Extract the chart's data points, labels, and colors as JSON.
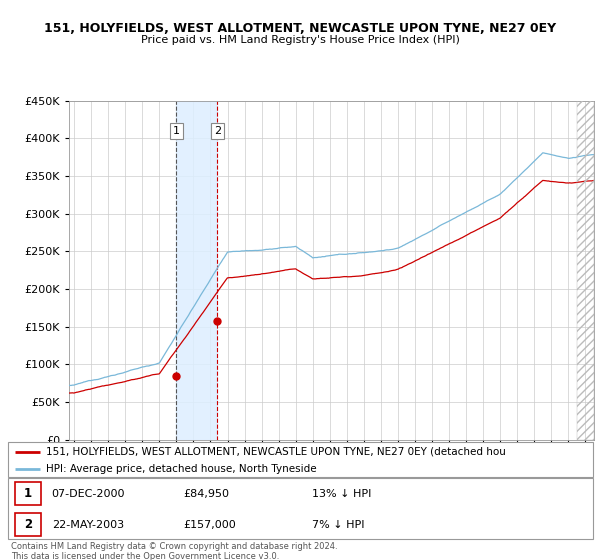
{
  "title1": "151, HOLYFIELDS, WEST ALLOTMENT, NEWCASTLE UPON TYNE, NE27 0EY",
  "title2": "Price paid vs. HM Land Registry's House Price Index (HPI)",
  "legend_line1": "151, HOLYFIELDS, WEST ALLOTMENT, NEWCASTLE UPON TYNE, NE27 0EY (detached hou",
  "legend_line2": "HPI: Average price, detached house, North Tyneside",
  "sale1_date": "07-DEC-2000",
  "sale1_price": "£84,950",
  "sale1_hpi": "13% ↓ HPI",
  "sale2_date": "22-MAY-2003",
  "sale2_price": "£157,000",
  "sale2_hpi": "7% ↓ HPI",
  "footer": "Contains HM Land Registry data © Crown copyright and database right 2024.\nThis data is licensed under the Open Government Licence v3.0.",
  "sale1_x": 2001.0,
  "sale1_y": 84950,
  "sale2_x": 2003.4,
  "sale2_y": 157000,
  "hpi_color": "#7ab8d9",
  "sale_color": "#cc0000",
  "shade_color": "#ddeeff",
  "ylim": [
    0,
    450000
  ],
  "xlim_start": 1994.7,
  "xlim_end": 2025.5
}
